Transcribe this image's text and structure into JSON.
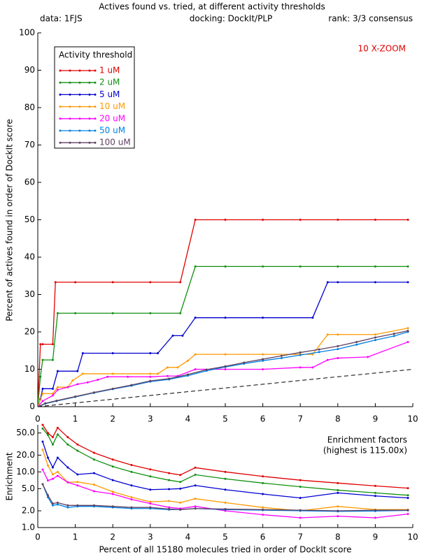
{
  "chart_data": [
    {
      "type": "line",
      "title": "Actives found vs. tried, at different activity thresholds",
      "notes": [
        "data: 1FJS",
        "docking: DockIt/PLP",
        "rank: 3/3 consensus"
      ],
      "annotation": "10 X-ZOOM",
      "ylabel": "Percent of actives found in order of DockIt score",
      "legend_title": "Activity threshold",
      "legend": "upper left",
      "xlim": [
        0,
        10
      ],
      "xticks": [
        0,
        1,
        2,
        3,
        4,
        5,
        6,
        7,
        8,
        9,
        10
      ],
      "ylim": [
        0,
        100
      ],
      "yticks": [
        0,
        10,
        20,
        30,
        40,
        50,
        60,
        70,
        80,
        90,
        100
      ],
      "reference_line": {
        "x": [
          0,
          10
        ],
        "values": [
          0,
          10
        ],
        "color": "#000000",
        "dashed": true
      },
      "series": [
        {
          "name": "1 uM",
          "color": "#e00000",
          "x": [
            0,
            0.07,
            0.13,
            0.4,
            0.47,
            1,
            2,
            3,
            3.8,
            4.2,
            5,
            6,
            7,
            8,
            9,
            9.87
          ],
          "values": [
            0,
            16.7,
            16.7,
            16.7,
            33.3,
            33.3,
            33.3,
            33.3,
            33.3,
            50,
            50,
            50,
            50,
            50,
            50,
            50
          ]
        },
        {
          "name": "2 uM",
          "color": "#109010",
          "x": [
            0,
            0.07,
            0.13,
            0.4,
            0.53,
            1,
            2,
            3,
            3.8,
            4.2,
            5,
            6,
            7,
            8,
            9,
            9.87
          ],
          "values": [
            0,
            8,
            12.5,
            12.5,
            25,
            25,
            25,
            25,
            25,
            37.5,
            37.5,
            37.5,
            37.5,
            37.5,
            37.5,
            37.5
          ]
        },
        {
          "name": "5 uM",
          "color": "#0000d0",
          "x": [
            0,
            0.07,
            0.13,
            0.4,
            0.53,
            1.06,
            1.2,
            2,
            3,
            3.2,
            3.6,
            3.86,
            4.2,
            5,
            6,
            7.33,
            7.73,
            8,
            9,
            9.87
          ],
          "values": [
            0,
            2,
            4.8,
            4.8,
            9.5,
            9.5,
            14.3,
            14.3,
            14.3,
            14.3,
            19,
            19,
            23.8,
            23.8,
            23.8,
            23.8,
            33.3,
            33.3,
            33.3,
            33.3
          ]
        },
        {
          "name": "10 uM",
          "color": "#ff9900",
          "x": [
            0,
            0.13,
            0.4,
            0.53,
            0.8,
            0.93,
            1.2,
            2,
            3,
            3.2,
            3.46,
            3.73,
            4,
            4.2,
            5,
            6,
            7,
            7.33,
            7.73,
            8,
            9,
            9.87
          ],
          "values": [
            0,
            3.5,
            3.5,
            5.2,
            5.2,
            7,
            8.8,
            8.8,
            8.8,
            8.8,
            10.5,
            10.5,
            12.3,
            14,
            14,
            14,
            14,
            14,
            19.3,
            19.3,
            19.3,
            21
          ]
        },
        {
          "name": "20 uM",
          "color": "#ff00ff",
          "x": [
            0,
            0.13,
            0.4,
            0.53,
            0.8,
            1.06,
            1.33,
            1.6,
            1.86,
            2.4,
            3,
            3.46,
            3.73,
            4.2,
            5,
            6,
            7,
            7.33,
            7.73,
            8,
            8.8,
            9.87
          ],
          "values": [
            0,
            1.5,
            3,
            4.5,
            5.2,
            6,
            6.5,
            7.2,
            8,
            8,
            8,
            8.2,
            8.2,
            10,
            10,
            10,
            10.5,
            10.5,
            12.5,
            13,
            13.3,
            17.3
          ]
        },
        {
          "name": "50 uM",
          "color": "#0080e0",
          "x": [
            0,
            0.2,
            0.5,
            1,
            1.5,
            2,
            2.5,
            3,
            3.5,
            4,
            4.5,
            5,
            5.5,
            6,
            6.5,
            7,
            7.5,
            8,
            8.5,
            9,
            9.5,
            9.87
          ],
          "values": [
            0,
            0.8,
            1.5,
            2.6,
            3.7,
            4.7,
            5.6,
            6.7,
            7.3,
            8.3,
            9.6,
            10.6,
            11.5,
            12.3,
            13,
            13.8,
            14.6,
            15.4,
            16.6,
            17.8,
            18.9,
            20
          ]
        },
        {
          "name": "100 uM",
          "color": "#604060",
          "x": [
            0,
            0.2,
            0.5,
            1,
            1.5,
            2,
            2.5,
            3,
            3.5,
            4,
            4.5,
            5,
            5.5,
            6,
            6.5,
            7,
            7.5,
            8,
            8.5,
            9,
            9.5,
            9.87
          ],
          "values": [
            0,
            0.9,
            1.6,
            2.7,
            3.8,
            4.8,
            5.8,
            6.9,
            7.5,
            8.6,
            9.9,
            10.8,
            11.8,
            12.7,
            13.6,
            14.5,
            15.3,
            16.2,
            17.3,
            18.5,
            19.5,
            20.3
          ]
        }
      ]
    },
    {
      "type": "line",
      "annotation": [
        "Enrichment factors",
        "(highest is 115.00x)"
      ],
      "xlabel": "Percent of all 15180 molecules tried in order of DockIt score",
      "ylabel": "Enrichment",
      "log_y": true,
      "xlim": [
        0,
        10
      ],
      "xticks": [
        0,
        1,
        2,
        3,
        4,
        5,
        6,
        7,
        8,
        9,
        10
      ],
      "ylim": [
        1,
        70
      ],
      "yticks": [
        {
          "value": 1,
          "label": "1.0"
        },
        {
          "value": 2,
          "label": "2.0"
        },
        {
          "value": 5,
          "label": "5.0"
        },
        {
          "value": 10,
          "label": "10.0"
        },
        {
          "value": 20,
          "label": "20.0"
        },
        {
          "value": 50,
          "label": "50.0"
        }
      ],
      "x": [
        0.13,
        0.27,
        0.4,
        0.53,
        0.8,
        1.06,
        1.5,
        2,
        2.5,
        3,
        3.5,
        3.8,
        4.2,
        5,
        6,
        7,
        8,
        9,
        9.87
      ],
      "series": [
        {
          "color": "#e00000",
          "values": [
            70,
            50,
            42,
            62,
            42,
            31,
            22,
            16.7,
            13.3,
            11.1,
            9.5,
            8.8,
            11.9,
            10,
            8.3,
            7.1,
            6.3,
            5.6,
            5.1
          ]
        },
        {
          "color": "#109010",
          "values": [
            60,
            46,
            31,
            47,
            31,
            24,
            16.7,
            12.5,
            10,
            8.3,
            7.1,
            6.6,
            8.9,
            7.5,
            6.3,
            5.4,
            4.7,
            4.2,
            3.8
          ]
        },
        {
          "color": "#0000d0",
          "values": [
            35,
            18,
            12,
            18,
            12,
            9,
            9.5,
            7.1,
            5.7,
            4.8,
            4.9,
            5,
            5.7,
            4.8,
            4,
            3.4,
            4.2,
            3.7,
            3.4
          ]
        },
        {
          "color": "#ff9900",
          "values": [
            25,
            13,
            9,
            10,
            6.5,
            6.6,
            5.9,
            4.4,
            3.5,
            2.9,
            3,
            2.8,
            3.3,
            2.8,
            2.3,
            2,
            2.4,
            2.1,
            2.1
          ]
        },
        {
          "color": "#ff00ff",
          "values": [
            11,
            7,
            7.5,
            8.5,
            6.5,
            5.7,
            4.5,
            4,
            3.2,
            2.7,
            2.3,
            2.2,
            2.4,
            2,
            1.7,
            1.5,
            1.6,
            1.5,
            1.75
          ]
        },
        {
          "color": "#0080e0",
          "values": [
            6,
            3.5,
            2.5,
            2.6,
            2.3,
            2.4,
            2.4,
            2.3,
            2.2,
            2.2,
            2.1,
            2.1,
            2.2,
            2.1,
            2.05,
            2,
            1.95,
            1.98,
            2.03
          ]
        },
        {
          "color": "#604060",
          "values": [
            6,
            3.8,
            2.7,
            2.8,
            2.5,
            2.5,
            2.5,
            2.4,
            2.3,
            2.3,
            2.15,
            2.1,
            2.2,
            2.15,
            2.1,
            2.05,
            2,
            2.05,
            2.05
          ]
        }
      ]
    }
  ]
}
